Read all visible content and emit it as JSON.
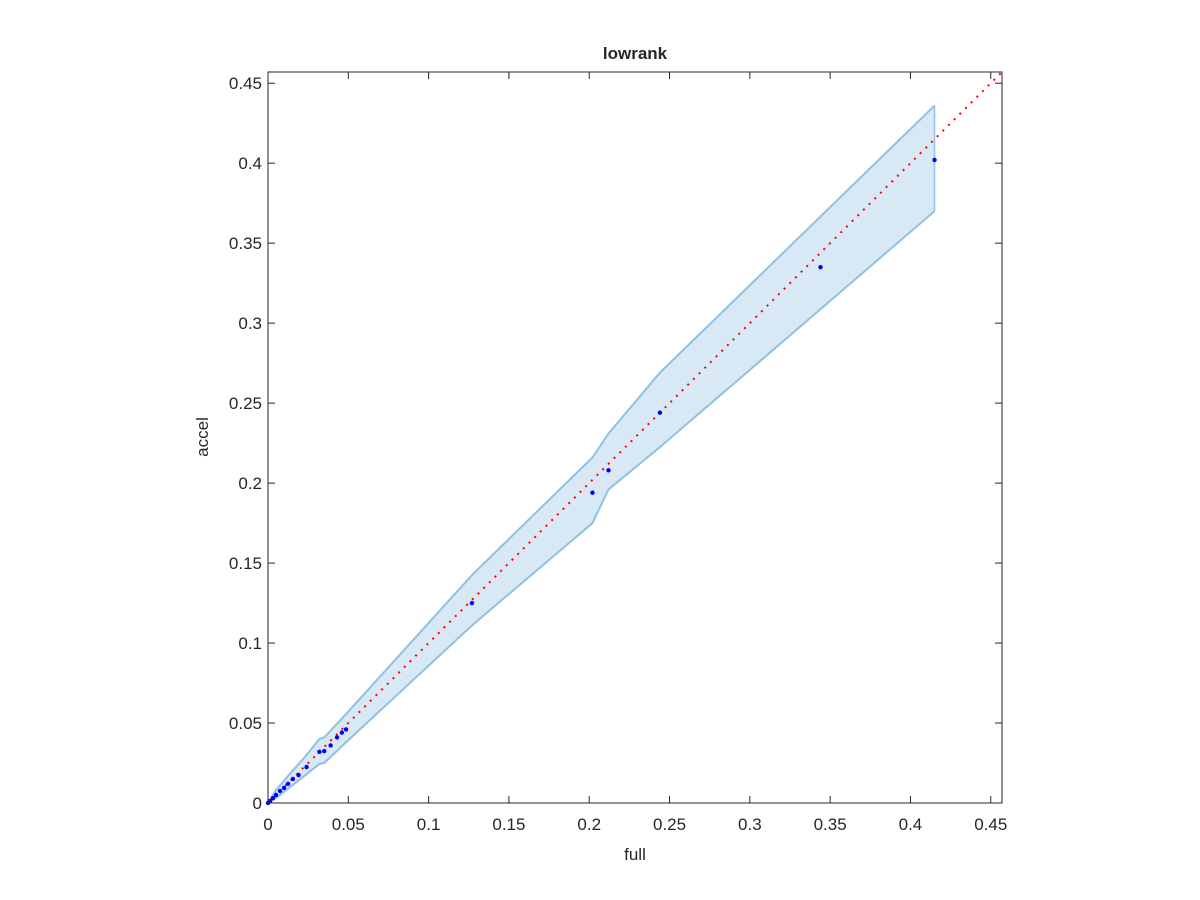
{
  "chart_data": {
    "type": "scatter",
    "title": "lowrank",
    "x_label": "full",
    "y_label": "accel",
    "x": [
      0.415,
      0.344,
      0.244,
      0.212,
      0.202,
      0.127,
      0.0486,
      0.046,
      0.043,
      0.039,
      0.035,
      0.032,
      0.024,
      0.019,
      0.0155,
      0.0125,
      0.01,
      0.0075,
      0.005,
      0.003,
      0.0012,
      0
    ],
    "values": [
      0.402,
      0.335,
      0.244,
      0.208,
      0.194,
      0.125,
      0.046,
      0.044,
      0.041,
      0.036,
      0.0325,
      0.032,
      0.0225,
      0.0175,
      0.015,
      0.012,
      0.0094,
      0.0075,
      0.005,
      0.003,
      0.0012,
      0
    ],
    "color": "#0000ff",
    "band": {
      "x": [
        0,
        0.005,
        0.0125,
        0.024,
        0.032,
        0.035,
        0.0486,
        0.127,
        0.202,
        0.212,
        0.244,
        0.415
      ],
      "upper": [
        0,
        0.008,
        0.017,
        0.03,
        0.04,
        0.041,
        0.0556,
        0.1425,
        0.216,
        0.231,
        0.269,
        0.436
      ],
      "lower": [
        0,
        0.003,
        0.009,
        0.018,
        0.0244,
        0.025,
        0.038,
        0.111,
        0.175,
        0.196,
        0.2225,
        0.37
      ],
      "color": "#8fc1e0",
      "fill": "#d9e8f5"
    },
    "reference_line": {
      "x": [
        0,
        0.457
      ],
      "values": [
        0,
        0.457
      ],
      "color": "#ff0000"
    },
    "xlim": [
      0,
      0.457
    ],
    "ylim": [
      0,
      0.457
    ],
    "xticks": [
      0,
      0.05,
      0.1,
      0.15,
      0.2,
      0.25,
      0.3,
      0.35,
      0.4,
      0.45
    ],
    "yticks": [
      0,
      0.05,
      0.1,
      0.15,
      0.2,
      0.25,
      0.3,
      0.35,
      0.4,
      0.45
    ]
  }
}
